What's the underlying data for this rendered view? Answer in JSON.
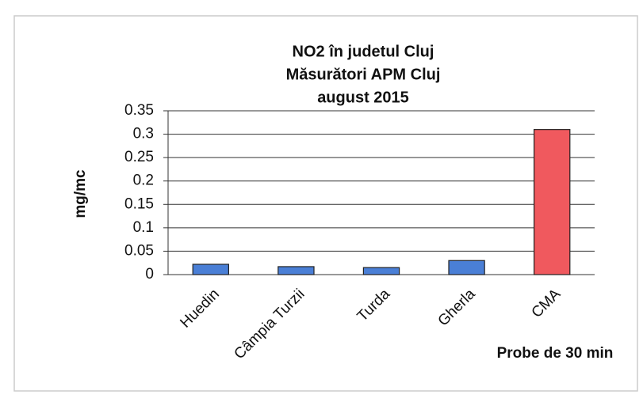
{
  "chart_data": {
    "type": "bar",
    "title": [
      "NO2 în judetul Cluj",
      "Măsurători  APM Cluj",
      "august 2015"
    ],
    "y_label": "mg/mc",
    "x_label": "Probe de 30 min",
    "categories": [
      "Huedin",
      "Câmpia Turzii",
      "Turda",
      "Gherla",
      "CMA"
    ],
    "values": [
      0.022,
      0.017,
      0.015,
      0.03,
      0.31
    ],
    "colors": [
      "#4a7fd6",
      "#4a7fd6",
      "#4a7fd6",
      "#4a7fd6",
      "#f0595e"
    ],
    "ylim": [
      0,
      0.35
    ],
    "yticks": [
      0,
      0.05,
      0.1,
      0.15,
      0.2,
      0.25,
      0.3,
      0.35
    ],
    "grid": true
  }
}
